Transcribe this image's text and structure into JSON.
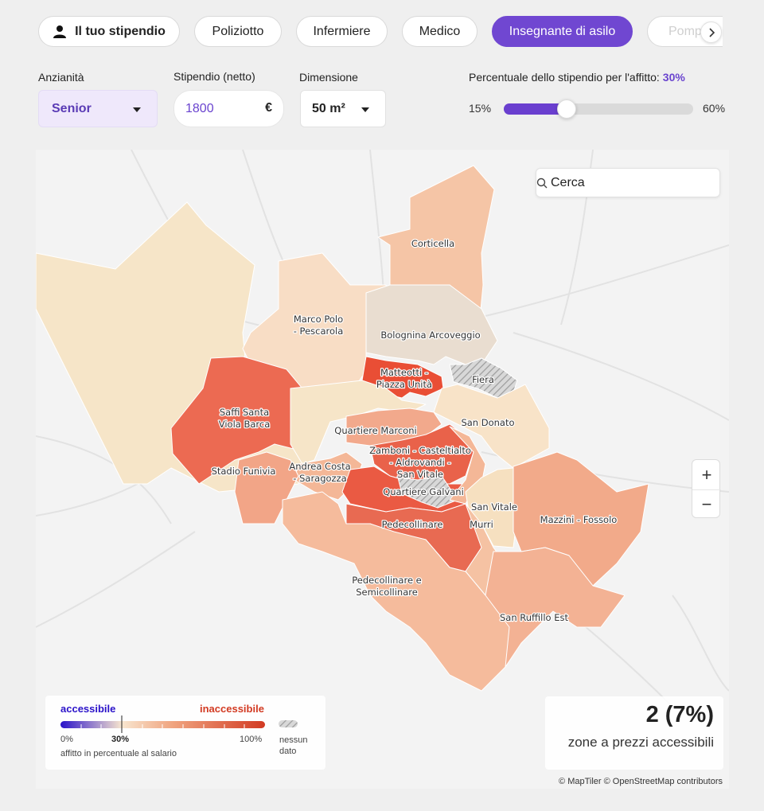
{
  "tabs": [
    {
      "label": "Il tuo stipendio"
    },
    {
      "label": "Poliziotto"
    },
    {
      "label": "Infermiere"
    },
    {
      "label": "Medico"
    },
    {
      "label": "Insegnante di asilo"
    },
    {
      "label": "Pompi"
    }
  ],
  "controls": {
    "seniority_label": "Anzianità",
    "seniority_value": "Senior",
    "salary_label": "Stipendio (netto)",
    "salary_value": "1800",
    "currency": "€",
    "dimension_label": "Dimensione",
    "dimension_value": "50 m²",
    "rent_pct_label": "Percentuale dello stipendio per l'affitto:",
    "rent_pct_value": "30%",
    "slider_min": "15%",
    "slider_max": "60%",
    "slider_fraction": 0.33
  },
  "map": {
    "search_placeholder": "Cerca",
    "zones": [
      {
        "name": "Corticella"
      },
      {
        "name": "Marco Polo\n- Pescarola"
      },
      {
        "name": "Bolognina Arcoveggio"
      },
      {
        "name": "Matteotti -\nPiazza Unità"
      },
      {
        "name": "Fiera"
      },
      {
        "name": "Saffi Santa\nViola Barca"
      },
      {
        "name": "San Donato"
      },
      {
        "name": "Quartiere Marconi"
      },
      {
        "name": "Zamboni - Casteltialto\n- Aldrovandi -\nSan Vitale"
      },
      {
        "name": "Andrea Costa\n- Saragozza"
      },
      {
        "name": "Stadio Funivia"
      },
      {
        "name": "Quartiere Galvani"
      },
      {
        "name": "San Vitale"
      },
      {
        "name": "Murri"
      },
      {
        "name": "Mazzini - Fossolo"
      },
      {
        "name": "Pedecollinare"
      },
      {
        "name": "Pedecollinare e\nSemicollinare"
      },
      {
        "name": "San Ruffillo Est"
      }
    ],
    "zoom_in": "+",
    "zoom_out": "−",
    "legend": {
      "accessible": "accessibile",
      "inaccessible": "inaccessibile",
      "tick_min": "0%",
      "tick_mid": "30%",
      "tick_max": "100%",
      "caption": "affitto in percentuale al salario",
      "no_data": "nessun\ndato"
    },
    "stats": {
      "value": "2 (7%)",
      "caption": "zone a prezzi accessibili"
    },
    "attribution": "© MapTiler © OpenStreetMap contributors"
  },
  "colors": {
    "accent": "#6a3fcf",
    "accessible": "#2a12c9",
    "inaccessible": "#d23a22"
  }
}
